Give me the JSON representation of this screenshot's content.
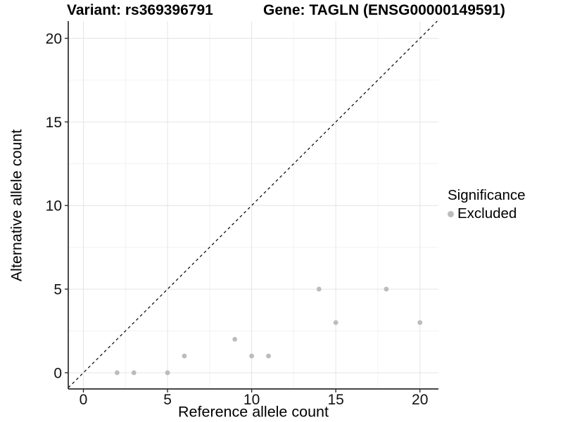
{
  "chart_data": {
    "type": "scatter",
    "title_left": "Variant: rs369396791",
    "title_right": "Gene: TAGLN (ENSG00000149591)",
    "xlabel": "Reference allele count",
    "ylabel": "Alternative allele count",
    "xlim": [
      -0.9,
      21.1
    ],
    "ylim": [
      -0.97,
      21.03
    ],
    "x_ticks": [
      0,
      5,
      10,
      15,
      20
    ],
    "y_ticks": [
      0,
      5,
      10,
      15,
      20
    ],
    "x_minor_ticks": [
      2.5,
      7.5,
      12.5,
      17.5
    ],
    "y_minor_ticks": [
      2.5,
      7.5,
      12.5,
      17.5
    ],
    "grid": "major+minor",
    "reference_line": {
      "type": "identity y=x",
      "style": "dashed",
      "color": "#111111"
    },
    "legend": {
      "title": "Significance",
      "position": "right",
      "items": [
        {
          "label": "Excluded",
          "color": "#bcbcbc"
        }
      ]
    },
    "series": [
      {
        "name": "Excluded",
        "color": "#bcbcbc",
        "points": [
          [
            2,
            0
          ],
          [
            3,
            0
          ],
          [
            5,
            0
          ],
          [
            6,
            1
          ],
          [
            9,
            2
          ],
          [
            10,
            1
          ],
          [
            11,
            1
          ],
          [
            14,
            5
          ],
          [
            15,
            3
          ],
          [
            18,
            5
          ],
          [
            20,
            3
          ]
        ]
      }
    ]
  },
  "colors": {
    "background": "#ffffff",
    "grid_major": "#e4e4e4",
    "grid_minor": "#f2f2f2",
    "axis_line": "#2b2b2b",
    "tick_text": "#111111",
    "point": "#bcbcbc"
  }
}
